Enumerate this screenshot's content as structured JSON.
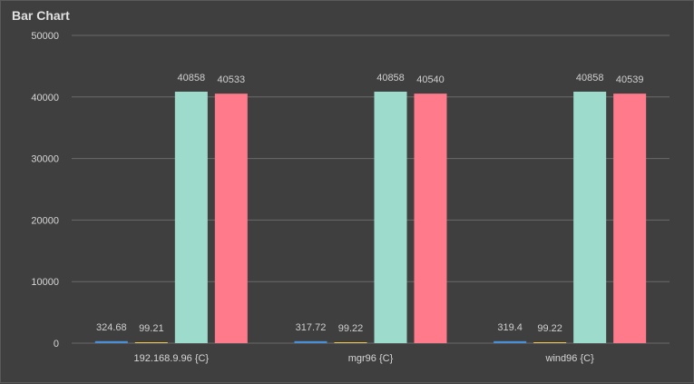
{
  "chart_data": {
    "type": "bar",
    "title": "Bar Chart",
    "categories": [
      "192.168.9.96 {C}",
      "mgr96 {C}",
      "wind96 {C}"
    ],
    "series": [
      {
        "values": [
          324.68,
          317.72,
          319.4
        ],
        "color": "#4a90d9"
      },
      {
        "values": [
          99.21,
          99.22,
          99.22
        ],
        "color": "#f2c94c"
      },
      {
        "values": [
          40858,
          40858,
          40858
        ],
        "color": "#9ddccc"
      },
      {
        "values": [
          40533,
          40540,
          40539
        ],
        "color": "#ff7a8a"
      }
    ],
    "ylim": [
      0,
      50000
    ],
    "yticks": [
      "0",
      "10000",
      "20000",
      "30000",
      "40000",
      "50000"
    ],
    "grid": true,
    "legend": "none"
  }
}
